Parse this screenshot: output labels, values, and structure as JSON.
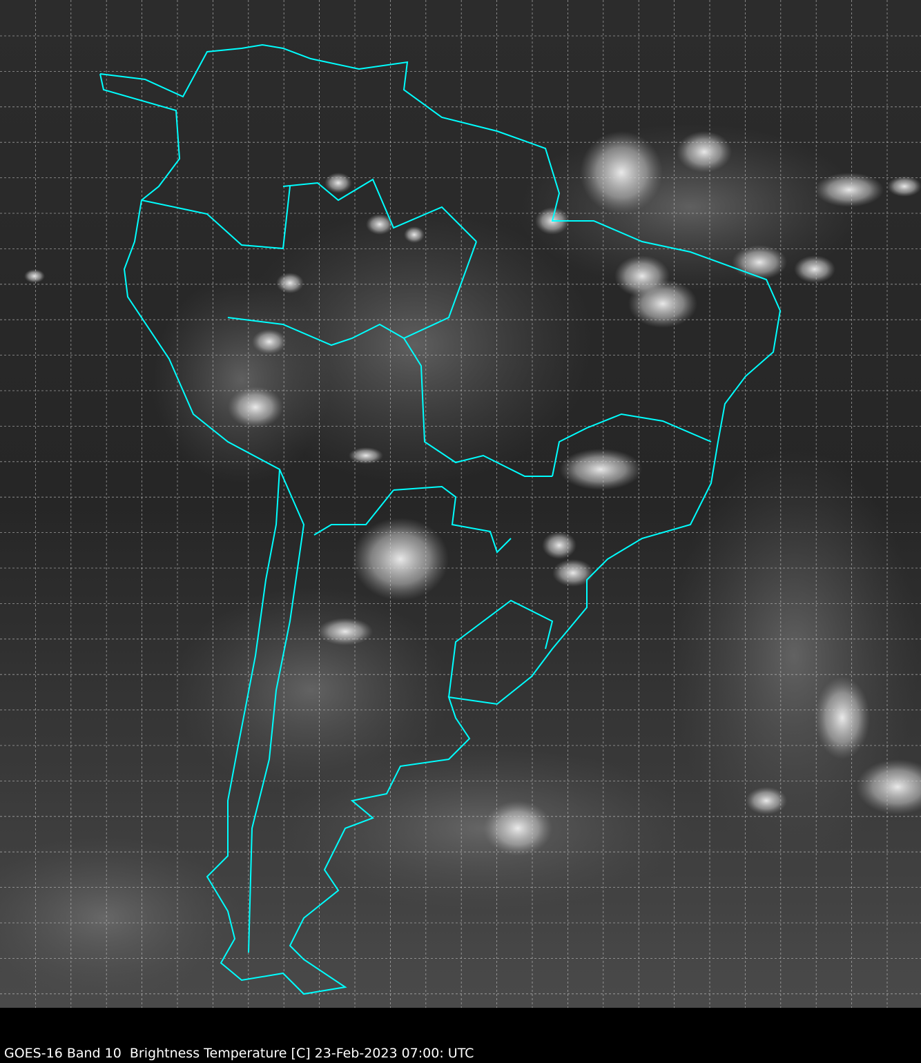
{
  "caption": "GOES-16 Band 10  Brightness Temperature [C] 23-Feb-2023 07:00: UTC",
  "map": {
    "region": "South America",
    "imagery": "infrared grayscale",
    "gridlines": true,
    "colors": {
      "background": "#2a2a2a",
      "coastline": "#00ffff",
      "grid": "#cfcfcf",
      "clouds": "#f0f0f0",
      "caption_bar": "#000000",
      "caption_text": "#ffffff"
    }
  }
}
